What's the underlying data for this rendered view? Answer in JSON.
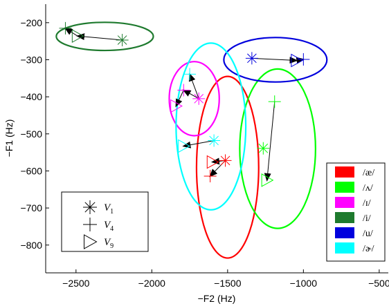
{
  "chart_data": {
    "type": "scatter",
    "xlabel": "−F2 (Hz)",
    "ylabel": "−F1 (Hz)",
    "xlim": [
      -2700,
      -440
    ],
    "ylim": [
      -875,
      -150
    ],
    "xticks": [
      -2500,
      -2000,
      -1500,
      -1000,
      -500
    ],
    "xtick_labels": [
      "−2500",
      "−2000",
      "−1500",
      "−1000",
      "−500"
    ],
    "yticks": [
      -200,
      -300,
      -400,
      -500,
      -600,
      -700,
      -800
    ],
    "ytick_labels": [
      "−200",
      "−300",
      "−400",
      "−500",
      "−600",
      "−700",
      "−800"
    ],
    "marker_legend": {
      "placement": "lower-left",
      "items": [
        {
          "marker": "asterisk",
          "base": "V",
          "sub": "1"
        },
        {
          "marker": "plus",
          "base": "V",
          "sub": "4"
        },
        {
          "marker": "triangle",
          "base": "V",
          "sub": "9"
        }
      ]
    },
    "color_legend": {
      "placement": "lower-right",
      "items": [
        {
          "label": "/æ/",
          "color": "#ff0000"
        },
        {
          "label": "/ʌ/",
          "color": "#00ff00"
        },
        {
          "label": "/ɪ/",
          "color": "#ff00ff"
        },
        {
          "label": "/i/",
          "color": "#1e7a2e"
        },
        {
          "label": "/u/",
          "color": "#0000dd"
        },
        {
          "label": "/ɚ/",
          "color": "#00ffff"
        }
      ]
    },
    "series": [
      {
        "name": "/æ/",
        "color": "#ff0000",
        "ellipse": {
          "cx": -1500,
          "cy": -590,
          "rx": 205,
          "ry": 245
        },
        "points": [
          {
            "marker": "asterisk",
            "x": -1515,
            "y": -572
          },
          {
            "marker": "plus",
            "x": -1615,
            "y": -614
          },
          {
            "marker": "triangle",
            "x": -1600,
            "y": -576
          }
        ]
      },
      {
        "name": "/ʌ/",
        "color": "#00ff00",
        "ellipse": {
          "cx": -1170,
          "cy": -540,
          "rx": 250,
          "ry": 215
        },
        "points": [
          {
            "marker": "asterisk",
            "x": -1265,
            "y": -539
          },
          {
            "marker": "plus",
            "x": -1190,
            "y": -413
          },
          {
            "marker": "triangle",
            "x": -1240,
            "y": -625
          }
        ]
      },
      {
        "name": "/ɪ/",
        "color": "#ff00ff",
        "ellipse": {
          "cx": -1720,
          "cy": -405,
          "rx": 165,
          "ry": 100
        },
        "points": [
          {
            "marker": "asterisk",
            "x": -1690,
            "y": -405
          },
          {
            "marker": "plus",
            "x": -1790,
            "y": -382
          },
          {
            "marker": "triangle",
            "x": -1840,
            "y": -425
          }
        ]
      },
      {
        "name": "/i/",
        "color": "#1e7a2e",
        "ellipse": {
          "cx": -2310,
          "cy": -237,
          "rx": 320,
          "ry": 38
        },
        "points": [
          {
            "marker": "asterisk",
            "x": -2195,
            "y": -247
          },
          {
            "marker": "plus",
            "x": -2570,
            "y": -215
          },
          {
            "marker": "triangle",
            "x": -2490,
            "y": -236
          }
        ]
      },
      {
        "name": "/u/",
        "color": "#0000dd",
        "ellipse": {
          "cx": -1185,
          "cy": -300,
          "rx": 340,
          "ry": 60
        },
        "points": [
          {
            "marker": "asterisk",
            "x": -1340,
            "y": -296
          },
          {
            "marker": "plus",
            "x": -1000,
            "y": -299
          },
          {
            "marker": "triangle",
            "x": -1045,
            "y": -302
          }
        ]
      },
      {
        "name": "/ɚ/",
        "color": "#00ffff",
        "ellipse": {
          "cx": -1610,
          "cy": -480,
          "rx": 230,
          "ry": 225
        },
        "points": [
          {
            "marker": "asterisk",
            "x": -1590,
            "y": -518
          },
          {
            "marker": "plus",
            "x": -1750,
            "y": -339
          },
          {
            "marker": "triangle",
            "x": -1790,
            "y": -533
          }
        ]
      }
    ],
    "arrows": [
      {
        "from": [
          -2195,
          -247
        ],
        "to": [
          -2490,
          -236
        ]
      },
      {
        "from": [
          -2490,
          -236
        ],
        "to": [
          -2570,
          -215
        ]
      },
      {
        "from": [
          -1340,
          -296
        ],
        "to": [
          -1045,
          -302
        ]
      },
      {
        "from": [
          -1045,
          -302
        ],
        "to": [
          -1000,
          -299
        ]
      },
      {
        "from": [
          -1690,
          -405
        ],
        "to": [
          -1790,
          -382
        ]
      },
      {
        "from": [
          -1790,
          -382
        ],
        "to": [
          -1840,
          -425
        ]
      },
      {
        "from": [
          -1690,
          -405
        ],
        "to": [
          -1750,
          -339
        ]
      },
      {
        "from": [
          -1590,
          -518
        ],
        "to": [
          -1790,
          -533
        ]
      },
      {
        "from": [
          -1515,
          -572
        ],
        "to": [
          -1600,
          -576
        ]
      },
      {
        "from": [
          -1515,
          -572
        ],
        "to": [
          -1615,
          -614
        ]
      },
      {
        "from": [
          -1190,
          -413
        ],
        "to": [
          -1240,
          -625
        ]
      }
    ]
  }
}
